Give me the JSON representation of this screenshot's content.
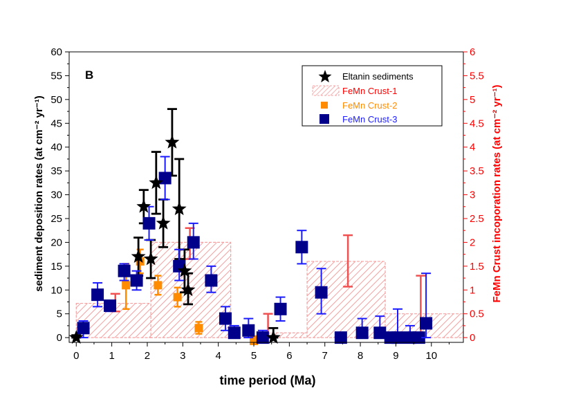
{
  "chart_data": {
    "type": "scatter",
    "panel_label": "B",
    "xlabel": "time period (Ma)",
    "ylabel_left": "sediment deposition rates (at cm⁻² yr⁻¹)",
    "ylabel_right": "FeMn Crust incoporation rates (at cm⁻² yr⁻¹)",
    "xlim": [
      -0.2,
      10.9
    ],
    "ylim_left": [
      -1,
      60
    ],
    "ylim_right": [
      -0.1,
      6
    ],
    "x_ticks": [
      "0",
      "1",
      "2",
      "3",
      "4",
      "5",
      "6",
      "7",
      "8",
      "9",
      "10"
    ],
    "y_left_ticks": [
      "0",
      "5",
      "10",
      "15",
      "20",
      "25",
      "30",
      "35",
      "40",
      "45",
      "50",
      "55",
      "60"
    ],
    "y_right_ticks": [
      "0",
      "0.5",
      "1",
      "1.5",
      "2",
      "2.5",
      "3",
      "3.5",
      "4",
      "4.5",
      "5",
      "5.5",
      "6"
    ],
    "colors": {
      "eltanin": "#000000",
      "crust1": "#f08080",
      "crust1_err": "#f05050",
      "crust2": "#ff8c00",
      "crust3": "#00008b",
      "crust3_err": "#1a1aff",
      "right_axis": "#ff0000"
    },
    "legend": {
      "placement": "top-right",
      "entries": [
        {
          "label": "Eltanin sediments",
          "series": "eltanin"
        },
        {
          "label": "FeMn Crust-1",
          "series": "crust1"
        },
        {
          "label": "FeMn Crust-2",
          "series": "crust2"
        },
        {
          "label": "FeMn Crust-3",
          "series": "crust3"
        }
      ]
    },
    "series": [
      {
        "name": "Eltanin sediments",
        "key": "eltanin",
        "axis": "left",
        "marker": "star",
        "points": [
          {
            "x": 0.0,
            "y": 0.0,
            "lo": 0.0,
            "hi": 0.5
          },
          {
            "x": 1.75,
            "y": 17.0,
            "lo": 13.0,
            "hi": 21.0
          },
          {
            "x": 1.9,
            "y": 27.5,
            "lo": 24.0,
            "hi": 31.0
          },
          {
            "x": 2.1,
            "y": 16.5,
            "lo": 12.5,
            "hi": 20.5
          },
          {
            "x": 2.25,
            "y": 32.5,
            "lo": 26.0,
            "hi": 39.0
          },
          {
            "x": 2.45,
            "y": 24.0,
            "lo": 19.0,
            "hi": 29.0
          },
          {
            "x": 2.7,
            "y": 41.0,
            "lo": 34.0,
            "hi": 48.0
          },
          {
            "x": 2.9,
            "y": 27.0,
            "lo": 16.5,
            "hi": 37.5
          },
          {
            "x": 3.05,
            "y": 14.0,
            "lo": 9.5,
            "hi": 18.5
          },
          {
            "x": 3.15,
            "y": 10.0,
            "lo": 7.0,
            "hi": 13.5
          },
          {
            "x": 5.55,
            "y": 0.0,
            "lo": 0.0,
            "hi": 2.0
          }
        ]
      },
      {
        "name": "FeMn Crust-1",
        "key": "crust1",
        "axis": "right",
        "marker": "hatched-bar",
        "bins": [
          {
            "x0": 0.0,
            "x1": 2.1,
            "y": 0.72
          },
          {
            "x0": 2.1,
            "x1": 4.35,
            "y": 2.0
          },
          {
            "x0": 4.35,
            "x1": 5.15,
            "y": 0.0
          },
          {
            "x0": 5.15,
            "x1": 6.5,
            "y": 0.1
          },
          {
            "x0": 6.5,
            "x1": 8.7,
            "y": 1.6
          },
          {
            "x0": 8.7,
            "x1": 10.9,
            "y": 0.5
          }
        ],
        "errors": [
          {
            "x": 1.1,
            "lo": 0.55,
            "hi": 0.92
          },
          {
            "x": 3.2,
            "lo": 1.65,
            "hi": 2.3
          },
          {
            "x": 5.4,
            "lo": 0.0,
            "hi": 0.5
          },
          {
            "x": 7.65,
            "lo": 1.07,
            "hi": 2.15
          },
          {
            "x": 9.7,
            "lo": 0.0,
            "hi": 1.3
          }
        ]
      },
      {
        "name": "FeMn Crust-2",
        "key": "crust2",
        "axis": "left",
        "marker": "square",
        "points": [
          {
            "x": 1.4,
            "y": 11.0,
            "lo": 6.0,
            "hi": 15.5
          },
          {
            "x": 1.8,
            "y": 16.0,
            "lo": 13.5,
            "hi": 18.5
          },
          {
            "x": 2.3,
            "y": 11.0,
            "lo": 9.0,
            "hi": 13.0
          },
          {
            "x": 2.85,
            "y": 8.5,
            "lo": 6.5,
            "hi": 10.5
          },
          {
            "x": 3.45,
            "y": 2.0,
            "lo": 0.8,
            "hi": 3.3
          },
          {
            "x": 5.0,
            "y": -0.7,
            "lo": -0.7,
            "hi": 0.3
          }
        ]
      },
      {
        "name": "FeMn Crust-3",
        "key": "crust3",
        "axis": "left",
        "marker": "square",
        "points": [
          {
            "x": 0.2,
            "y": 2.0,
            "lo": 0.0,
            "hi": 3.5
          },
          {
            "x": 0.6,
            "y": 9.0,
            "lo": 6.5,
            "hi": 11.5
          },
          {
            "x": 0.95,
            "y": 6.7,
            "lo": 5.5,
            "hi": 7.5
          },
          {
            "x": 1.35,
            "y": 14.0,
            "lo": 12.0,
            "hi": 15.5
          },
          {
            "x": 1.7,
            "y": 12.0,
            "lo": 10.0,
            "hi": 14.0
          },
          {
            "x": 2.05,
            "y": 24.0,
            "lo": 20.5,
            "hi": 27.5
          },
          {
            "x": 2.5,
            "y": 33.5,
            "lo": 29.0,
            "hi": 38.0
          },
          {
            "x": 2.9,
            "y": 15.0,
            "lo": 12.0,
            "hi": 18.5
          },
          {
            "x": 3.3,
            "y": 20.0,
            "lo": 16.5,
            "hi": 24.0
          },
          {
            "x": 3.8,
            "y": 12.0,
            "lo": 9.5,
            "hi": 15.0
          },
          {
            "x": 4.2,
            "y": 4.0,
            "lo": 1.5,
            "hi": 6.5
          },
          {
            "x": 4.45,
            "y": 1.0,
            "lo": 0.0,
            "hi": 2.5
          },
          {
            "x": 4.85,
            "y": 1.5,
            "lo": 0.0,
            "hi": 4.0
          },
          {
            "x": 5.25,
            "y": 0.0,
            "lo": 0.0,
            "hi": 1.5
          },
          {
            "x": 5.75,
            "y": 6.0,
            "lo": 3.5,
            "hi": 8.5
          },
          {
            "x": 6.35,
            "y": 19.0,
            "lo": 15.5,
            "hi": 22.5
          },
          {
            "x": 6.9,
            "y": 9.5,
            "lo": 5.0,
            "hi": 14.5
          },
          {
            "x": 7.45,
            "y": 0.0,
            "lo": 0.0,
            "hi": 0.5
          },
          {
            "x": 8.05,
            "y": 1.0,
            "lo": 0.0,
            "hi": 4.0
          },
          {
            "x": 8.55,
            "y": 1.0,
            "lo": 0.0,
            "hi": 4.5
          },
          {
            "x": 8.85,
            "y": 0.0,
            "lo": 0.0,
            "hi": 1.0
          },
          {
            "x": 9.05,
            "y": 0.0,
            "lo": 0.0,
            "hi": 6.0
          },
          {
            "x": 9.4,
            "y": 0.0,
            "lo": 0.0,
            "hi": 2.5
          },
          {
            "x": 9.65,
            "y": 0.0,
            "lo": 0.0,
            "hi": 0.5
          },
          {
            "x": 9.85,
            "y": 3.0,
            "lo": 0.0,
            "hi": 13.5
          }
        ]
      }
    ]
  }
}
